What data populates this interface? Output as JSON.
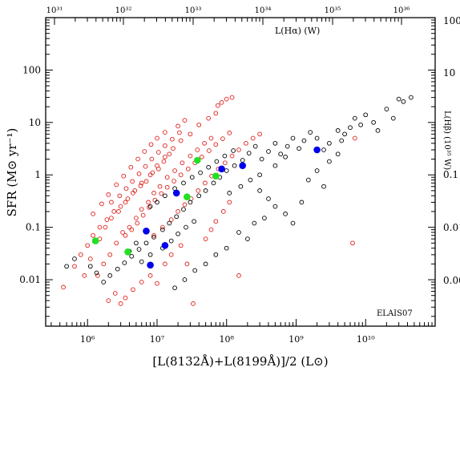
{
  "chart_data": {
    "type": "scatter",
    "x_scale": "log",
    "y_scale": "log",
    "xlim": [
      250000,
      100000000000
    ],
    "ylim": [
      0.0013,
      1000
    ],
    "xlabel": "[L(8132Å)+L(8199Å)]/2 (L⊙)",
    "ylabel": "SFR (M⊙ yr⁻¹)",
    "x_ticks": [
      {
        "value": 1000000,
        "label": "10⁶"
      },
      {
        "value": 10000000,
        "label": "10⁷"
      },
      {
        "value": 100000000,
        "label": "10⁸"
      },
      {
        "value": 1000000000,
        "label": "10⁹"
      },
      {
        "value": 10000000000,
        "label": "10¹⁰"
      }
    ],
    "y_ticks": [
      {
        "value": 0.01,
        "label": "0.01"
      },
      {
        "value": 0.1,
        "label": "0.1"
      },
      {
        "value": 1,
        "label": "1"
      },
      {
        "value": 10,
        "label": "10"
      },
      {
        "value": 100,
        "label": "100"
      }
    ],
    "top_axis": {
      "label": "L(Hα) (W)",
      "ticks": [
        "10³¹",
        "10³²",
        "10³³",
        "10³⁴",
        "10³⁵",
        "10³⁶"
      ]
    },
    "right_axis": {
      "label": "L(Hβ) (10³⁵ W)",
      "ticks": [
        "100",
        "10",
        "0.1",
        "0.01",
        "0.00"
      ]
    },
    "annotation": "ELAIS07",
    "series": [
      {
        "color": "#e0201a",
        "marker": "open-circle",
        "points": [
          [
            450000.0,
            0.0072
          ],
          [
            650000.0,
            0.018
          ],
          [
            800000.0,
            0.03
          ],
          [
            1000000.0,
            0.045
          ],
          [
            1200000.0,
            0.07
          ],
          [
            1500000.0,
            0.06
          ],
          [
            1800000.0,
            0.1
          ],
          [
            2200000.0,
            0.15
          ],
          [
            2800000.0,
            0.2
          ],
          [
            3500000.0,
            0.3
          ],
          [
            4500000.0,
            0.45
          ],
          [
            6000000.0,
            0.7
          ],
          [
            8000000.0,
            1.0
          ],
          [
            10000000.0,
            1.5
          ],
          [
            13000000.0,
            2.2
          ],
          [
            17000000.0,
            3.2
          ],
          [
            22000000.0,
            4.5
          ],
          [
            30000000.0,
            6
          ],
          [
            40000000.0,
            9
          ],
          [
            55000000.0,
            12
          ],
          [
            70000000.0,
            15
          ],
          [
            75000000.0,
            21
          ],
          [
            85000000.0,
            24
          ],
          [
            100000000.0,
            28
          ],
          [
            120000000.0,
            30
          ],
          [
            900000.0,
            0.012
          ],
          [
            1100000.0,
            0.025
          ],
          [
            1400000.0,
            0.012
          ],
          [
            1700000.0,
            0.02
          ],
          [
            2100000.0,
            0.03
          ],
          [
            2600000.0,
            0.05
          ],
          [
            3200000.0,
            0.08
          ],
          [
            4000000.0,
            0.1
          ],
          [
            5000000.0,
            0.15
          ],
          [
            6000000.0,
            0.22
          ],
          [
            7500000.0,
            0.3
          ],
          [
            9000000.0,
            0.45
          ],
          [
            11000000.0,
            0.6
          ],
          [
            14000000.0,
            0.9
          ],
          [
            18000000.0,
            1.2
          ],
          [
            23000000.0,
            1.7
          ],
          [
            30000000.0,
            2.3
          ],
          [
            38000000.0,
            3.0
          ],
          [
            48000000.0,
            4.0
          ],
          [
            60000000.0,
            5.0
          ],
          [
            2000000.0,
            0.004
          ],
          [
            2500000.0,
            0.0055
          ],
          [
            3000000.0,
            0.0035
          ],
          [
            3500000.0,
            0.0045
          ],
          [
            4500000.0,
            0.0065
          ],
          [
            6000000.0,
            0.009
          ],
          [
            8000000.0,
            0.012
          ],
          [
            10000000.0,
            0.0085
          ],
          [
            13000000.0,
            0.02
          ],
          [
            16000000.0,
            0.03
          ],
          [
            22000000.0,
            0.045
          ],
          [
            27000000.0,
            0.02
          ],
          [
            33000000.0,
            0.0035
          ],
          [
            150000000.0,
            0.012
          ],
          [
            50000000.0,
            0.06
          ],
          [
            60000000.0,
            0.09
          ],
          [
            70000000.0,
            0.13
          ],
          [
            90000000.0,
            0.2
          ],
          [
            110000000.0,
            0.3
          ],
          [
            6500000000.0,
            0.05
          ],
          [
            7000000000.0,
            5.0
          ],
          [
            1200000.0,
            0.18
          ],
          [
            1600000.0,
            0.28
          ],
          [
            2000000.0,
            0.42
          ],
          [
            2600000.0,
            0.65
          ],
          [
            3300000.0,
            0.95
          ],
          [
            4200000.0,
            1.4
          ],
          [
            5300000.0,
            2.0
          ],
          [
            6600000.0,
            2.8
          ],
          [
            8200000.0,
            3.8
          ],
          [
            10000000.0,
            5.0
          ],
          [
            13000000.0,
            6.5
          ],
          [
            20000000.0,
            8.5
          ],
          [
            25000000.0,
            11
          ],
          [
            1500000.0,
            0.1
          ],
          [
            1900000.0,
            0.14
          ],
          [
            2400000.0,
            0.2
          ],
          [
            3000000.0,
            0.25
          ],
          [
            3800000.0,
            0.35
          ],
          [
            4800000.0,
            0.5
          ],
          [
            5800000.0,
            0.62
          ],
          [
            7000000.0,
            0.75
          ],
          [
            8600000.0,
            1.1
          ],
          [
            10500000.0,
            1.3
          ],
          [
            12500000.0,
            1.8
          ],
          [
            15000000.0,
            2.5
          ],
          [
            9000000.0,
            0.07
          ],
          [
            12000000.0,
            0.1
          ],
          [
            16000000.0,
            0.14
          ],
          [
            20000000.0,
            0.2
          ],
          [
            25000000.0,
            0.27
          ],
          [
            31000000.0,
            0.35
          ],
          [
            39000000.0,
            0.5
          ],
          [
            49000000.0,
            0.7
          ],
          [
            61000000.0,
            0.95
          ],
          [
            76000000.0,
            1.3
          ],
          [
            95000000.0,
            1.7
          ],
          [
            120000000.0,
            2.3
          ],
          [
            150000000.0,
            3.0
          ],
          [
            190000000.0,
            4.0
          ],
          [
            240000000.0,
            5.0
          ],
          [
            300000000.0,
            6.0
          ],
          [
            2200000.0,
            0.3
          ],
          [
            2900000.0,
            0.4
          ],
          [
            3600000.0,
            0.55
          ],
          [
            4400000.0,
            0.75
          ],
          [
            5500000.0,
            1.05
          ],
          [
            6800000.0,
            1.45
          ],
          [
            8400000.0,
            2.0
          ],
          [
            10500000.0,
            2.7
          ],
          [
            13000000.0,
            3.6
          ],
          [
            16500000.0,
            4.8
          ],
          [
            21000000.0,
            6.4
          ],
          [
            3500000.0,
            0.07
          ],
          [
            4300000.0,
            0.09
          ],
          [
            5200000.0,
            0.12
          ],
          [
            6300000.0,
            0.17
          ],
          [
            7700000.0,
            0.24
          ],
          [
            9300000.0,
            0.33
          ],
          [
            11500000.0,
            0.44
          ],
          [
            14000000.0,
            0.58
          ],
          [
            17500000.0,
            0.76
          ],
          [
            22000000.0,
            1.0
          ],
          [
            28000000.0,
            1.3
          ],
          [
            35000000.0,
            1.7
          ],
          [
            44000000.0,
            2.2
          ],
          [
            56000000.0,
            2.9
          ],
          [
            70000000.0,
            3.8
          ],
          [
            88000000.0,
            4.9
          ],
          [
            110000000.0,
            6.3
          ]
        ]
      },
      {
        "color": "#000000",
        "marker": "open-circle",
        "points": [
          [
            45000000000.0,
            30
          ],
          [
            35000000000.0,
            25
          ],
          [
            30000000000.0,
            28
          ],
          [
            25000000000.0,
            12
          ],
          [
            20000000000.0,
            18
          ],
          [
            15000000000.0,
            7
          ],
          [
            13000000000.0,
            10
          ],
          [
            10000000000.0,
            14
          ],
          [
            8500000000.0,
            9
          ],
          [
            7000000000.0,
            12
          ],
          [
            6000000000.0,
            8
          ],
          [
            5000000000.0,
            6
          ],
          [
            4500000000.0,
            4.5
          ],
          [
            4000000000.0,
            7
          ],
          [
            3000000000.0,
            4
          ],
          [
            2500000000.0,
            3
          ],
          [
            2000000000.0,
            5
          ],
          [
            1600000000.0,
            6.5
          ],
          [
            1300000000.0,
            4.5
          ],
          [
            1100000000.0,
            3.2
          ],
          [
            900000000.0,
            5
          ],
          [
            750000000.0,
            3.5
          ],
          [
            600000000.0,
            2.5
          ],
          [
            500000000.0,
            4
          ],
          [
            400000000.0,
            2.8
          ],
          [
            320000000.0,
            2
          ],
          [
            260000000.0,
            3.5
          ],
          [
            210000000.0,
            2.6
          ],
          [
            170000000.0,
            1.9
          ],
          [
            130000000.0,
            1.5
          ],
          [
            100000000.0,
            1.2
          ],
          [
            80000000.0,
            0.9
          ],
          [
            65000000.0,
            0.7
          ],
          [
            50000000.0,
            0.5
          ],
          [
            40000000.0,
            0.4
          ],
          [
            30000000.0,
            0.3
          ],
          [
            24000000.0,
            0.22
          ],
          [
            19000000.0,
            0.16
          ],
          [
            15000000.0,
            0.12
          ],
          [
            12000000.0,
            0.09
          ],
          [
            9000000.0,
            0.065
          ],
          [
            7000000.0,
            0.05
          ],
          [
            5500000.0,
            0.038
          ],
          [
            4300000.0,
            0.028
          ],
          [
            3400000.0,
            0.021
          ],
          [
            2700000.0,
            0.016
          ],
          [
            2100000.0,
            0.012
          ],
          [
            1700000.0,
            0.009
          ],
          [
            1350000.0,
            0.0135
          ],
          [
            1100000.0,
            0.018
          ],
          [
            500000.0,
            0.018
          ],
          [
            650000.0,
            0.025
          ],
          [
            300000000.0,
            0.5
          ],
          [
            400000000.0,
            0.35
          ],
          [
            500000000.0,
            0.25
          ],
          [
            700000000.0,
            0.18
          ],
          [
            900000000.0,
            0.12
          ],
          [
            1200000000.0,
            0.3
          ],
          [
            1500000000.0,
            0.8
          ],
          [
            2000000000.0,
            1.2
          ],
          [
            2500000000.0,
            0.6
          ],
          [
            3000000000.0,
            1.8
          ],
          [
            4000000000.0,
            2.5
          ],
          [
            150000000.0,
            0.08
          ],
          [
            200000000.0,
            0.06
          ],
          [
            250000000.0,
            0.12
          ],
          [
            350000000.0,
            0.15
          ],
          [
            100000000.0,
            0.04
          ],
          [
            70000000.0,
            0.03
          ],
          [
            50000000.0,
            0.02
          ],
          [
            35000000.0,
            0.015
          ],
          [
            25000000.0,
            0.01
          ],
          [
            18000000.0,
            0.007
          ],
          [
            300000000.0,
            1.0
          ],
          [
            220000000.0,
            0.8
          ],
          [
            160000000.0,
            0.6
          ],
          [
            110000000.0,
            0.45
          ],
          [
            500000000.0,
            1.5
          ],
          [
            700000000.0,
            2.2
          ],
          [
            8000000.0,
            0.25
          ],
          [
            10000000.0,
            0.3
          ],
          [
            13000000.0,
            0.4
          ],
          [
            18000000.0,
            0.55
          ],
          [
            24000000.0,
            0.7
          ],
          [
            32000000.0,
            0.9
          ],
          [
            42000000.0,
            1.1
          ],
          [
            55000000.0,
            1.4
          ],
          [
            72000000.0,
            1.8
          ],
          [
            94000000.0,
            2.3
          ],
          [
            125000000.0,
            2.9
          ],
          [
            4000000.0,
            0.035
          ],
          [
            5000000.0,
            0.05
          ],
          [
            6000000.0,
            0.022
          ],
          [
            8000000.0,
            0.03
          ],
          [
            12000000.0,
            0.04
          ],
          [
            16000000.0,
            0.055
          ],
          [
            20000000.0,
            0.075
          ],
          [
            26000000.0,
            0.1
          ],
          [
            34000000.0,
            0.13
          ]
        ]
      },
      {
        "color": "#0000ee",
        "marker": "filled-circle",
        "points": [
          [
            2000000000.0,
            3.0
          ],
          [
            170000000.0,
            1.5
          ],
          [
            85000000.0,
            1.3
          ],
          [
            19000000.0,
            0.45
          ],
          [
            7000000.0,
            0.085
          ],
          [
            13000000.0,
            0.045
          ],
          [
            8000000.0,
            0.019
          ]
        ]
      },
      {
        "color": "#22e022",
        "marker": "filled-circle",
        "points": [
          [
            38000000.0,
            1.9
          ],
          [
            70000000.0,
            0.95
          ],
          [
            27000000.0,
            0.38
          ],
          [
            1300000.0,
            0.055
          ],
          [
            3800000.0,
            0.034
          ]
        ]
      }
    ]
  }
}
